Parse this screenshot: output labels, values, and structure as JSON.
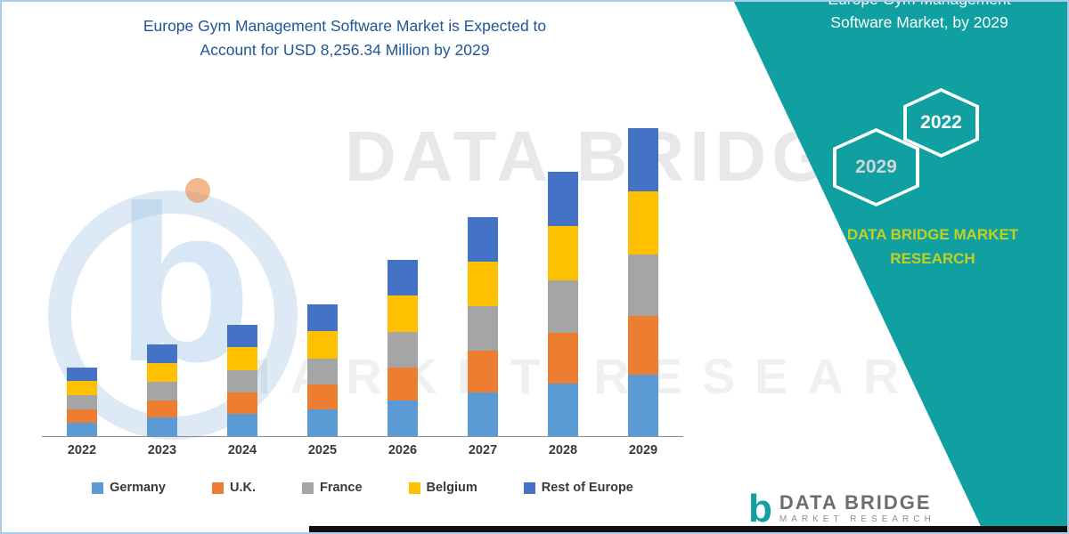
{
  "title": {
    "line1": "Europe Gym Management Software Market is Expected to",
    "line2": "Account for USD 8,256.34 Million by 2029"
  },
  "banner": {
    "heading_line1": "Europe Gym Management",
    "heading_line2": "Software Market, by 2029",
    "hexagons": [
      {
        "label": "2029"
      },
      {
        "label": "2022"
      }
    ],
    "brand_line1": "DATA BRIDGE MARKET",
    "brand_line2": "RESEARCH",
    "band_color": "#10A0A2",
    "brand_text_color": "#C3D021"
  },
  "watermark": {
    "line1": "DATA BRIDGE",
    "line2": "MARKET RESEARCH",
    "logo_letter": "b"
  },
  "footer_logo": {
    "letter": "b",
    "name": "DATA BRIDGE",
    "sub": "MARKET RESEARCH"
  },
  "chart_data": {
    "type": "bar",
    "stacked": true,
    "title": "Europe Gym Management Software Market is Expected to Account for USD 8,256.34 Million by 2029",
    "unit": "USD Million",
    "categories": [
      "2022",
      "2023",
      "2024",
      "2025",
      "2026",
      "2027",
      "2028",
      "2029"
    ],
    "series": [
      {
        "name": "Germany",
        "color": "#5B9BD5",
        "values": [
          370,
          495,
          600,
          710,
          950,
          1180,
          1420,
          1650
        ]
      },
      {
        "name": "U.K.",
        "color": "#ED7D31",
        "values": [
          350,
          470,
          570,
          670,
          900,
          1120,
          1345,
          1570
        ]
      },
      {
        "name": "France",
        "color": "#A5A5A5",
        "values": [
          370,
          495,
          600,
          710,
          950,
          1180,
          1420,
          1650
        ]
      },
      {
        "name": "Belgium",
        "color": "#FFC000",
        "values": [
          380,
          505,
          615,
          725,
          970,
          1205,
          1450,
          1690
        ]
      },
      {
        "name": "Rest of Europe",
        "color": "#4472C4",
        "values": [
          380,
          505,
          615,
          725,
          970,
          1205,
          1455,
          1696.34
        ]
      }
    ],
    "totals": [
      1850,
      2470,
      3000,
      3540,
      4740,
      5890,
      7090,
      8256.34
    ],
    "ylim": [
      0,
      8600
    ],
    "grid": false,
    "legend_position": "bottom"
  }
}
